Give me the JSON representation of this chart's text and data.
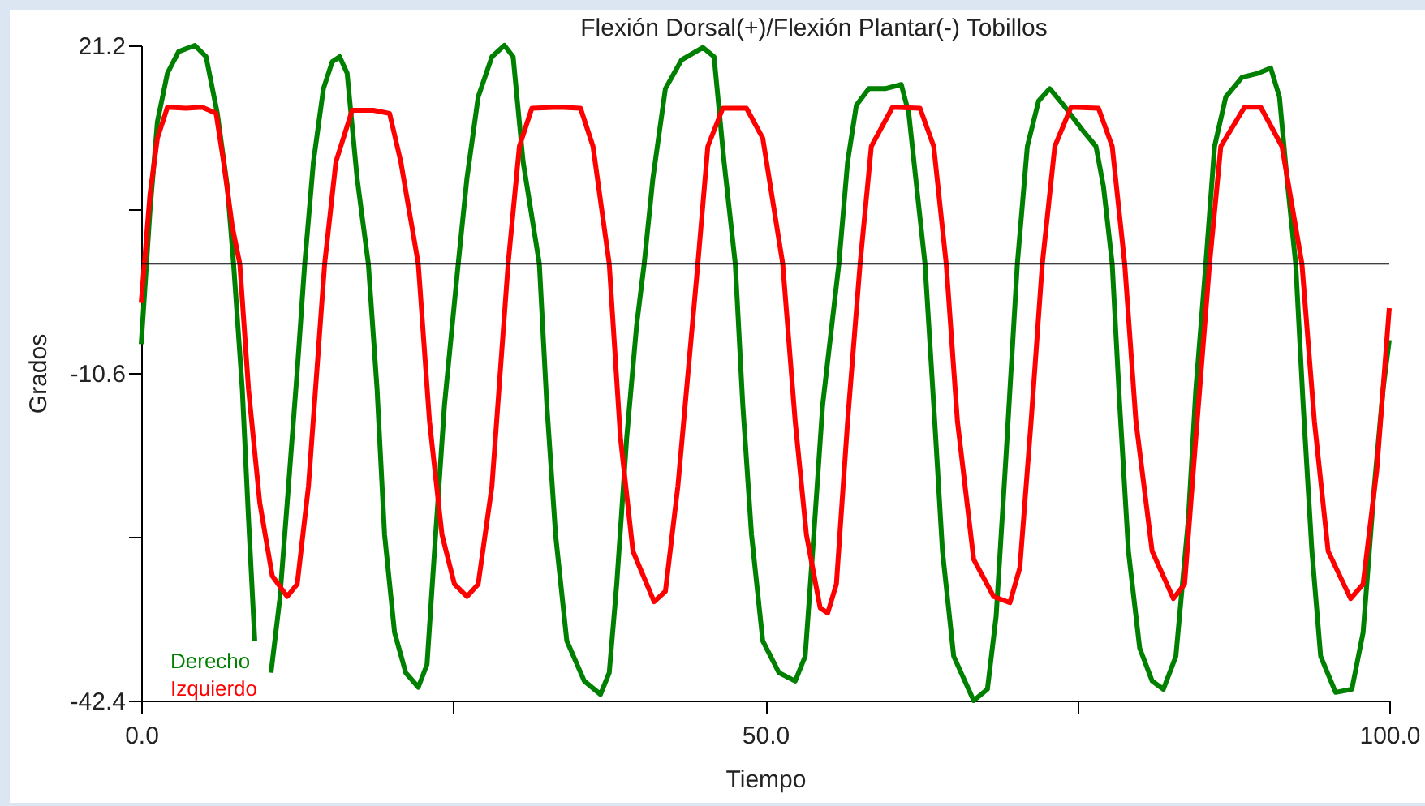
{
  "chart_data": {
    "type": "line",
    "title": "Flexión Dorsal(+)/Flexión Plantar(-) Tobillos",
    "xlabel": "Tiempo",
    "ylabel": "Grados",
    "xlim": [
      0,
      100
    ],
    "xticks": [
      {
        "value": 0,
        "label": "0.0"
      },
      {
        "value": 25,
        "label": null
      },
      {
        "value": 50,
        "label": "50.0"
      },
      {
        "value": 75,
        "label": null
      },
      {
        "value": 100,
        "label": "100.0"
      }
    ],
    "ylim": [
      -42.4,
      21.2
    ],
    "yticks": [
      -42.4,
      {
        "value": -26.5,
        "label": null
      },
      -10.6,
      {
        "value": 5.3,
        "label": null
      },
      21.2
    ],
    "grid": false,
    "legend": "bottom left",
    "marker": "none",
    "line_style": "solid",
    "ref_lines": [
      {
        "axis": "y",
        "value": 0,
        "label": null,
        "color": "#000000"
      }
    ],
    "series": [
      {
        "name": "Derecho",
        "color": "#008000",
        "x": [
          0,
          0.7,
          1.3,
          2.1,
          3.0,
          4.3,
          5.2,
          6.1,
          6.9,
          7.4,
          8.1,
          8.6,
          9.1,
          9.5,
          10.4,
          11.1,
          11.8,
          12.5,
          13.1,
          13.8,
          14.6,
          15.3,
          15.9,
          16.5,
          17.3,
          18.2,
          18.9,
          19.5,
          20.3,
          21.2,
          22.2,
          22.9,
          23.5,
          24.3,
          25.4,
          26.1,
          27.0,
          28.1,
          29.1,
          29.8,
          30.6,
          31.9,
          32.5,
          33.2,
          34.1,
          35.5,
          36.8,
          37.5,
          38.1,
          38.9,
          39.7,
          40.3,
          41.0,
          42.0,
          43.3,
          45.0,
          45.9,
          46.7,
          47.6,
          48.2,
          48.9,
          49.8,
          51.1,
          52.4,
          53.2,
          53.8,
          54.6,
          55.9,
          56.6,
          57.3,
          58.3,
          59.6,
          60.9,
          61.5,
          62.2,
          62.8,
          63.5,
          64.2,
          65.1,
          66.7,
          67.8,
          68.5,
          69.3,
          70.2,
          71.0,
          71.9,
          72.8,
          73.9,
          75.4,
          76.5,
          77.1,
          77.8,
          78.4,
          79.1,
          80.0,
          81.0,
          81.9,
          82.9,
          83.9,
          84.5,
          85.3,
          86.0,
          86.9,
          88.2,
          89.5,
          90.5,
          91.2,
          91.8,
          92.5,
          93.1,
          93.8,
          94.5,
          95.7,
          97.0,
          97.9,
          98.8,
          99.5,
          100
        ],
        "values": [
          -7.8,
          5.1,
          13.8,
          18.5,
          20.6,
          21.2,
          20.1,
          14.6,
          7.5,
          0,
          -12.2,
          -24.8,
          -36.6,
          null,
          -39.7,
          -32.6,
          -21.6,
          -10.4,
          0,
          9.9,
          17.0,
          19.6,
          20.1,
          18.5,
          8.3,
          0,
          -12.2,
          -26.3,
          -35.8,
          -39.7,
          -41.1,
          -38.9,
          -27.9,
          -13.7,
          0,
          8.3,
          16.2,
          20.1,
          21.2,
          20.1,
          9.9,
          0,
          -13.7,
          -26.3,
          -36.6,
          -40.5,
          -41.8,
          -39.7,
          -31.1,
          -16.9,
          -5.9,
          0,
          8.3,
          17.0,
          19.8,
          21.0,
          20.1,
          9.9,
          0,
          -13.7,
          -26.3,
          -36.6,
          -39.7,
          -40.5,
          -38.1,
          -27.9,
          -13.7,
          0,
          9.9,
          15.4,
          17.0,
          17.0,
          17.4,
          14.6,
          6.7,
          0,
          -13.7,
          -27.9,
          -38.1,
          -42.4,
          -41.3,
          -34.2,
          -18.5,
          0,
          11.4,
          15.8,
          17.0,
          15.4,
          13.0,
          11.4,
          7.5,
          0,
          -13.7,
          -27.9,
          -37.3,
          -40.5,
          -41.3,
          -38.1,
          -24.8,
          -12.2,
          0,
          11.4,
          16.2,
          18.1,
          18.5,
          19.0,
          16.2,
          8.3,
          0,
          -13.7,
          -27.9,
          -38.1,
          -41.6,
          -41.3,
          -35.8,
          -21.6,
          -12.2,
          -7.4
        ]
      },
      {
        "name": "Izquierdo",
        "color": "#ff0000",
        "x": [
          0,
          0.7,
          1.3,
          2.1,
          3.6,
          4.9,
          6.0,
          6.6,
          7.3,
          7.9,
          8.6,
          9.5,
          10.5,
          11.7,
          12.5,
          13.4,
          14.7,
          15.6,
          16.9,
          18.6,
          19.9,
          20.8,
          22.2,
          23.1,
          24.1,
          25.1,
          26.1,
          27.0,
          28.1,
          29.4,
          30.3,
          31.3,
          33.5,
          35.2,
          36.2,
          37.5,
          38.4,
          39.4,
          41.1,
          42.0,
          43.0,
          44.6,
          45.4,
          46.6,
          48.5,
          49.8,
          51.4,
          52.4,
          53.3,
          54.4,
          55.0,
          55.7,
          56.6,
          57.6,
          58.5,
          60.2,
          62.4,
          63.5,
          64.5,
          65.4,
          66.7,
          68.3,
          69.6,
          70.4,
          71.3,
          72.2,
          73.2,
          74.5,
          76.7,
          77.8,
          78.8,
          79.7,
          81.0,
          82.7,
          83.6,
          84.5,
          85.6,
          86.5,
          88.4,
          89.7,
          91.4,
          93.0,
          94.0,
          95.1,
          96.9,
          97.9,
          99.0,
          100
        ],
        "values": [
          -3.8,
          6.7,
          12.2,
          15.2,
          15.1,
          15.2,
          14.6,
          9.9,
          3.6,
          0,
          -12.2,
          -23.2,
          -30.3,
          -32.3,
          -31.1,
          -21.6,
          0,
          9.9,
          14.9,
          14.9,
          14.6,
          9.9,
          0,
          -15.3,
          -26.3,
          -31.1,
          -32.3,
          -31.1,
          -21.6,
          0,
          11.4,
          15.1,
          15.2,
          15.1,
          11.4,
          0,
          -16.9,
          -27.9,
          -32.8,
          -31.8,
          -21.6,
          0,
          11.4,
          15.1,
          15.1,
          12.2,
          0,
          -15.3,
          -26.3,
          -33.4,
          -33.9,
          -31.1,
          -15.3,
          0,
          11.4,
          15.2,
          15.1,
          11.4,
          0,
          -15.3,
          -28.7,
          -32.3,
          -32.9,
          -29.5,
          -15.3,
          0,
          11.4,
          15.2,
          15.1,
          11.4,
          0,
          -15.3,
          -27.9,
          -32.5,
          -31.1,
          -16.9,
          0,
          11.4,
          15.2,
          15.2,
          11.4,
          0,
          -15.3,
          -27.9,
          -32.5,
          -31.1,
          -20.0,
          -4.3
        ]
      }
    ]
  }
}
